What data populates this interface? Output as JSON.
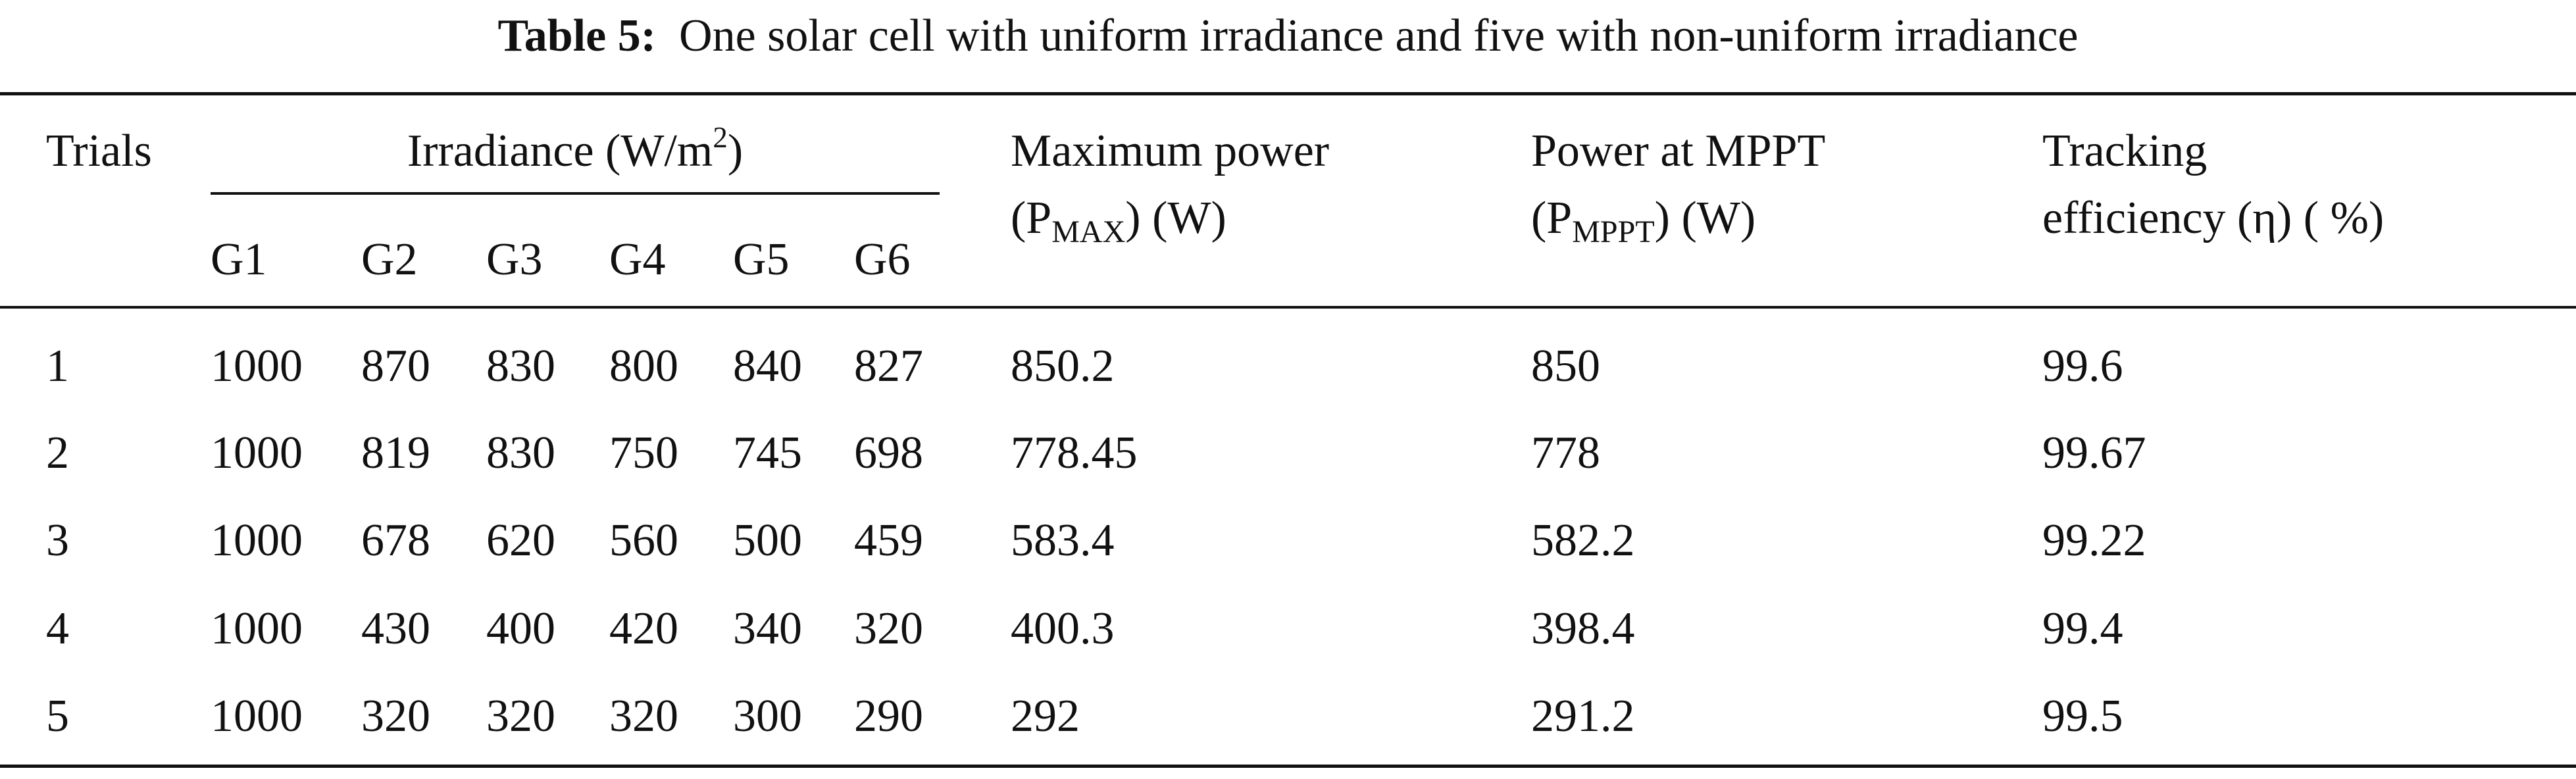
{
  "caption": {
    "label": "Table 5:",
    "text": "One solar cell with uniform irradiance and five with non-uniform irradiance"
  },
  "header": {
    "trials": "Trials",
    "irradiance": {
      "text": "Irradiance (W/m",
      "sup": "2",
      "close": ")"
    },
    "irradiance_columns": [
      "G1",
      "G2",
      "G3",
      "G4",
      "G5",
      "G6"
    ],
    "max_power": {
      "line1": "Maximum power",
      "open": "(P",
      "sub": "MAX",
      "close": ") (W)"
    },
    "power_mppt": {
      "line1": "Power at MPPT",
      "open": "(P",
      "sub": "MPPT",
      "close": ") (W)"
    },
    "efficiency": {
      "line1": "Tracking",
      "line2": "efficiency (η) ( %)"
    }
  },
  "rows": [
    [
      1,
      1000,
      870,
      830,
      800,
      840,
      827,
      850.2,
      850,
      99.6
    ],
    [
      2,
      1000,
      819,
      830,
      750,
      745,
      698,
      778.45,
      778,
      99.67
    ],
    [
      3,
      1000,
      678,
      620,
      560,
      500,
      459,
      583.4,
      582.2,
      99.22
    ],
    [
      4,
      1000,
      430,
      400,
      420,
      340,
      320,
      400.3,
      398.4,
      99.4
    ],
    [
      5,
      1000,
      320,
      320,
      320,
      300,
      290,
      292,
      291.2,
      99.5
    ]
  ]
}
